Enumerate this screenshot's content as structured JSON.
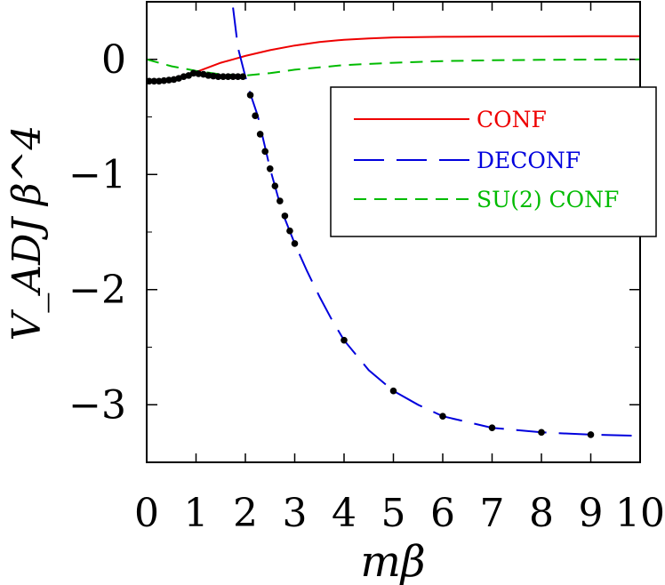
{
  "chart_data": {
    "type": "line",
    "title": "",
    "xlabel": "mβ",
    "ylabel": "V_ADJ β^4",
    "xlim": [
      0,
      10
    ],
    "ylim": [
      -3.5,
      0.5
    ],
    "x_ticks": [
      0,
      1,
      2,
      3,
      4,
      5,
      6,
      7,
      8,
      9,
      10
    ],
    "y_ticks": [
      0,
      -1,
      -2,
      -3
    ],
    "x_tick_labels": [
      "0",
      "1",
      "2",
      "3",
      "4",
      "5",
      "6",
      "7",
      "8",
      "9",
      "10"
    ],
    "y_tick_labels": [
      "0",
      "−1",
      "−2",
      "−3"
    ],
    "legend": {
      "position": "top-right",
      "boxed": true
    },
    "series": [
      {
        "name": "CONF",
        "color": "#ee0000",
        "dash": "solid",
        "x": [
          0.0,
          0.25,
          0.5,
          0.75,
          1.0,
          1.25,
          1.5,
          1.75,
          2.0,
          2.5,
          3.0,
          3.5,
          4.0,
          4.5,
          5.0,
          6.0,
          7.0,
          8.0,
          9.0,
          10.0
        ],
        "y": [
          -0.19,
          -0.185,
          -0.17,
          -0.14,
          -0.11,
          -0.07,
          -0.03,
          0.0,
          0.03,
          0.08,
          0.12,
          0.15,
          0.17,
          0.182,
          0.19,
          0.196,
          0.198,
          0.199,
          0.2,
          0.2
        ]
      },
      {
        "name": "DECONF",
        "color": "#0000dd",
        "dash": "long-dash",
        "x": [
          1.75,
          1.85,
          2.0,
          2.1,
          2.25,
          2.5,
          2.75,
          3.0,
          3.25,
          3.5,
          3.75,
          4.0,
          4.5,
          5.0,
          5.5,
          6.0,
          6.5,
          7.0,
          7.5,
          8.0,
          9.0,
          10.0
        ],
        "y": [
          0.45,
          0.1,
          -0.15,
          -0.3,
          -0.49,
          -0.95,
          -1.33,
          -1.6,
          -1.84,
          -2.06,
          -2.26,
          -2.44,
          -2.7,
          -2.88,
          -3.0,
          -3.1,
          -3.15,
          -3.2,
          -3.22,
          -3.24,
          -3.26,
          -3.27
        ]
      },
      {
        "name": "SU(2) CONF",
        "color": "#00bb00",
        "dash": "short-dash",
        "x": [
          0.0,
          0.5,
          1.0,
          1.5,
          2.0,
          2.5,
          3.0,
          4.0,
          5.0,
          6.0,
          7.0,
          8.0,
          9.0,
          10.0
        ],
        "y": [
          0.0,
          -0.06,
          -0.1,
          -0.13,
          -0.14,
          -0.12,
          -0.09,
          -0.05,
          -0.03,
          -0.015,
          -0.008,
          -0.004,
          -0.002,
          0.0
        ]
      },
      {
        "name": "",
        "type": "scatter",
        "color": "#000000",
        "x": [
          0.05,
          0.15,
          0.25,
          0.35,
          0.45,
          0.55,
          0.65,
          0.75,
          0.85,
          0.95,
          1.05,
          1.15,
          1.25,
          1.35,
          1.45,
          1.55,
          1.65,
          1.75,
          1.85,
          1.95,
          2.1,
          2.2,
          2.3,
          2.4,
          2.5,
          2.6,
          2.7,
          2.8,
          2.9,
          3.0,
          4.0,
          5.0,
          6.0,
          7.0,
          8.0,
          9.0
        ],
        "y": [
          -0.19,
          -0.19,
          -0.19,
          -0.185,
          -0.18,
          -0.175,
          -0.165,
          -0.15,
          -0.14,
          -0.12,
          -0.125,
          -0.13,
          -0.14,
          -0.145,
          -0.15,
          -0.15,
          -0.15,
          -0.15,
          -0.15,
          -0.15,
          -0.31,
          -0.49,
          -0.65,
          -0.8,
          -0.95,
          -1.1,
          -1.23,
          -1.36,
          -1.49,
          -1.6,
          -2.44,
          -2.88,
          -3.1,
          -3.2,
          -3.24,
          -3.26
        ]
      }
    ]
  }
}
